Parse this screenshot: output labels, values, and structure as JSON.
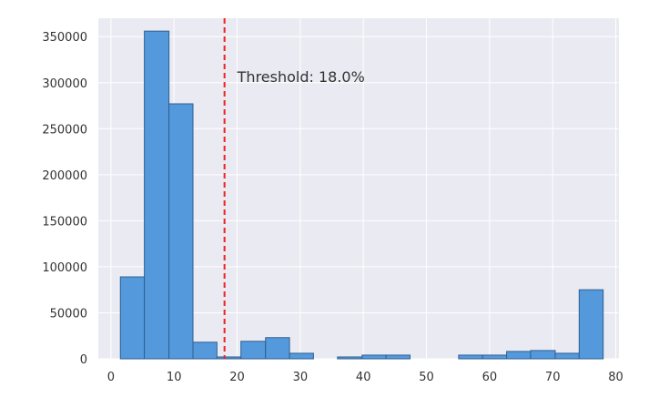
{
  "chart_data": {
    "type": "bar",
    "subtype": "histogram",
    "title": "",
    "xlabel": "",
    "ylabel": "",
    "xlim": [
      -2,
      80.5
    ],
    "ylim": [
      0,
      370000
    ],
    "x_ticks": [
      0,
      10,
      20,
      30,
      40,
      50,
      60,
      70,
      80
    ],
    "y_ticks": [
      0,
      50000,
      100000,
      150000,
      200000,
      250000,
      300000,
      350000
    ],
    "grid": true,
    "bin_edges": [
      1.5,
      5.3,
      9.2,
      13.0,
      16.8,
      20.6,
      24.5,
      28.3,
      32.1,
      35.9,
      39.8,
      43.6,
      47.4,
      51.2,
      55.1,
      58.9,
      62.7,
      66.5,
      70.4,
      74.2,
      78.0
    ],
    "values": [
      89000,
      356000,
      277000,
      18000,
      2000,
      19000,
      23000,
      6000,
      0,
      2000,
      4000,
      4000,
      0,
      0,
      4000,
      4000,
      8000,
      9000,
      6000,
      75000
    ],
    "bar_color": "#5599dd",
    "bar_edge_color": "#2e5f8f",
    "threshold": {
      "x": 18.0,
      "label": "Threshold: 18.0%",
      "color": "#ee2222"
    }
  }
}
